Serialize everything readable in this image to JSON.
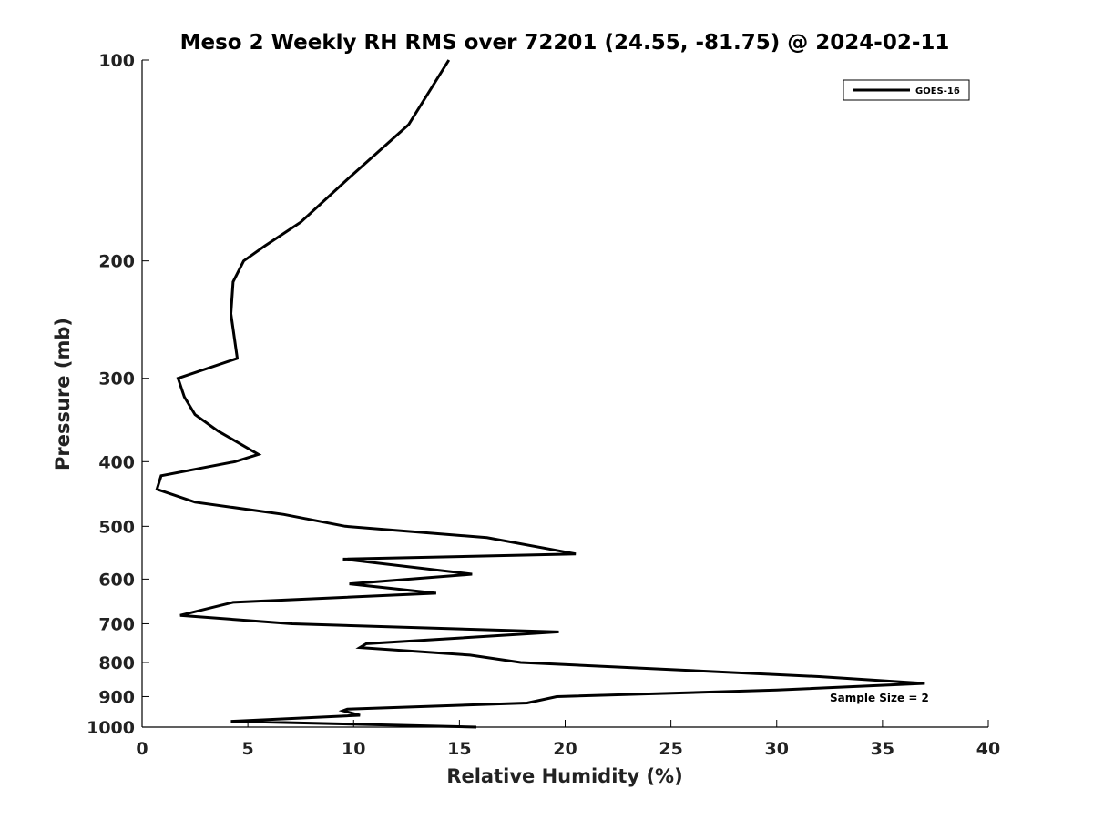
{
  "chart_data": {
    "type": "line",
    "title": "Meso 2 Weekly RH RMS over 72201 (24.55, -81.75) @ 2024-02-11",
    "xlabel": "Relative Humidity (%)",
    "ylabel": "Pressure (mb)",
    "xlim": [
      0,
      40
    ],
    "ylim": [
      100,
      1000
    ],
    "yscale": "log",
    "y_reversed": true,
    "x_ticks": [
      0,
      5,
      10,
      15,
      20,
      25,
      30,
      35,
      40
    ],
    "x_tick_labels": [
      "0",
      "5",
      "10",
      "15",
      "20",
      "25",
      "30",
      "35",
      "40"
    ],
    "y_ticks": [
      100,
      200,
      300,
      400,
      500,
      600,
      700,
      800,
      900,
      1000
    ],
    "y_tick_labels": [
      "100",
      "200",
      "300",
      "400",
      "500",
      "600",
      "700",
      "800",
      "900",
      "1000"
    ],
    "grid": false,
    "legend": {
      "position": "top-right",
      "entries": [
        "GOES-16"
      ]
    },
    "annotation": "Sample Size = 2",
    "series": [
      {
        "name": "GOES-16",
        "color": "#000000",
        "x": [
          14.5,
          12.6,
          9.8,
          7.5,
          5.8,
          4.8,
          4.3,
          4.2,
          4.5,
          1.7,
          2.0,
          2.5,
          3.6,
          5.5,
          4.4,
          0.9,
          0.7,
          2.5,
          6.7,
          9.6,
          16.3,
          20.5,
          9.5,
          15.6,
          9.8,
          13.9,
          4.3,
          1.8,
          7.1,
          19.7,
          10.6,
          10.3,
          15.5,
          17.9,
          32.0,
          37.0,
          30.0,
          19.6,
          18.2,
          9.7,
          9.5,
          10.3,
          4.2,
          15.8
        ],
        "y": [
          100,
          125,
          150,
          175,
          190,
          200,
          215,
          240,
          280,
          300,
          320,
          340,
          360,
          390,
          400,
          420,
          440,
          460,
          480,
          500,
          520,
          550,
          560,
          590,
          610,
          630,
          650,
          680,
          700,
          720,
          750,
          760,
          780,
          800,
          840,
          860,
          880,
          900,
          920,
          940,
          945,
          960,
          980,
          1000
        ]
      }
    ]
  }
}
